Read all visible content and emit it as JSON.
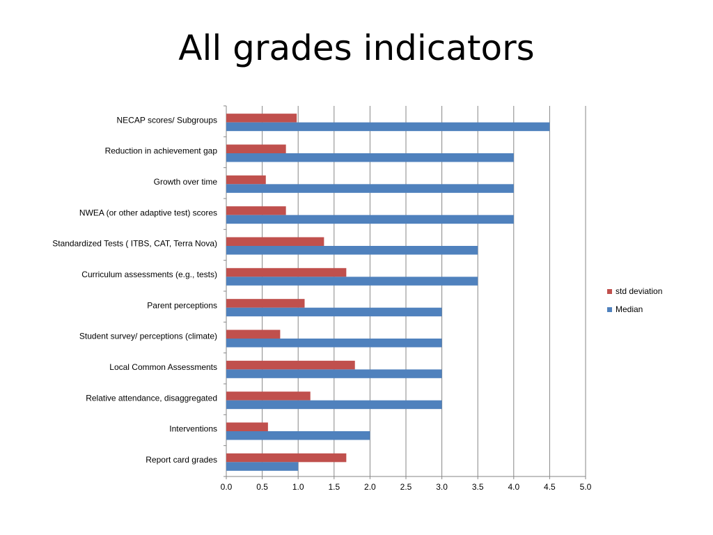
{
  "slide": {
    "title": "All grades indicators"
  },
  "colors": {
    "std_deviation": "#c0504d",
    "median": "#4f81bd",
    "axis": "#868686",
    "grid": "#868686"
  },
  "chart_data": {
    "type": "bar",
    "orientation": "horizontal",
    "title": "",
    "xlabel": "",
    "ylabel": "",
    "xlim": [
      0,
      5
    ],
    "x_ticks": [
      "0.0",
      "0.5",
      "1.0",
      "1.5",
      "2.0",
      "2.5",
      "3.0",
      "3.5",
      "4.0",
      "4.5",
      "5.0"
    ],
    "grid": true,
    "legend_position": "right",
    "categories": [
      "NECAP scores/ Subgroups",
      "Reduction in achievement gap",
      "Growth over time",
      "NWEA (or other adaptive test) scores",
      "Standardized Tests ( ITBS, CAT, Terra Nova)",
      "Curriculum assessments (e.g., tests)",
      "Parent perceptions",
      "Student survey/ perceptions (climate)",
      "Local Common Assessments",
      "Relative attendance, disaggregated",
      "Interventions",
      "Report card grades"
    ],
    "series": [
      {
        "name": "std deviation",
        "values": [
          0.98,
          0.83,
          0.55,
          0.83,
          1.36,
          1.67,
          1.09,
          0.75,
          1.79,
          1.17,
          0.58,
          1.67
        ]
      },
      {
        "name": "Median",
        "values": [
          4.5,
          4.0,
          4.0,
          4.0,
          3.5,
          3.5,
          3.0,
          3.0,
          3.0,
          3.0,
          2.0,
          1.0
        ]
      }
    ]
  }
}
